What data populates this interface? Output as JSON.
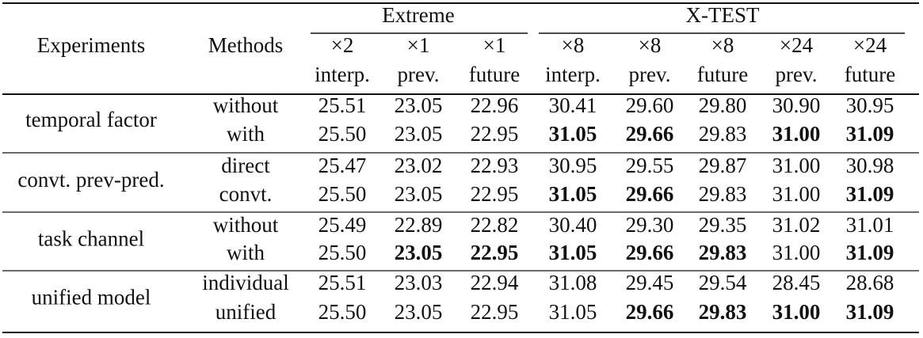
{
  "header": {
    "experiments": "Experiments",
    "methods": "Methods",
    "groups": [
      "Extreme",
      "X-TEST"
    ],
    "factors": [
      "×2",
      "×1",
      "×1",
      "×8",
      "×8",
      "×8",
      "×24",
      "×24"
    ],
    "targets": [
      "interp.",
      "prev.",
      "future",
      "interp.",
      "prev.",
      "future",
      "prev.",
      "future"
    ]
  },
  "rows": [
    {
      "experiment": "temporal factor",
      "methods": [
        {
          "method": "without",
          "values": [
            "25.51",
            "23.05",
            "22.96",
            "30.41",
            "29.60",
            "29.80",
            "30.90",
            "30.95"
          ],
          "bold": []
        },
        {
          "method": "with",
          "values": [
            "25.50",
            "23.05",
            "22.95",
            "31.05",
            "29.66",
            "29.83",
            "31.00",
            "31.09"
          ],
          "bold": [
            3,
            4,
            6,
            7
          ]
        }
      ]
    },
    {
      "experiment": "convt. prev-pred.",
      "methods": [
        {
          "method": "direct",
          "values": [
            "25.47",
            "23.02",
            "22.93",
            "30.95",
            "29.55",
            "29.87",
            "31.00",
            "30.98"
          ],
          "bold": []
        },
        {
          "method": "convt.",
          "values": [
            "25.50",
            "23.05",
            "22.95",
            "31.05",
            "29.66",
            "29.83",
            "31.00",
            "31.09"
          ],
          "bold": [
            3,
            4,
            7
          ]
        }
      ]
    },
    {
      "experiment": "task channel",
      "methods": [
        {
          "method": "without",
          "values": [
            "25.49",
            "22.89",
            "22.82",
            "30.40",
            "29.30",
            "29.35",
            "31.02",
            "31.01"
          ],
          "bold": []
        },
        {
          "method": "with",
          "values": [
            "25.50",
            "23.05",
            "22.95",
            "31.05",
            "29.66",
            "29.83",
            "31.00",
            "31.09"
          ],
          "bold": [
            1,
            2,
            3,
            4,
            5,
            7
          ]
        }
      ]
    },
    {
      "experiment": "unified model",
      "methods": [
        {
          "method": "individual",
          "values": [
            "25.51",
            "23.03",
            "22.94",
            "31.08",
            "29.45",
            "29.54",
            "28.45",
            "28.68"
          ],
          "bold": []
        },
        {
          "method": "unified",
          "values": [
            "25.50",
            "23.05",
            "22.95",
            "31.05",
            "29.66",
            "29.83",
            "31.00",
            "31.09"
          ],
          "bold": [
            4,
            5,
            6,
            7
          ]
        }
      ]
    }
  ]
}
